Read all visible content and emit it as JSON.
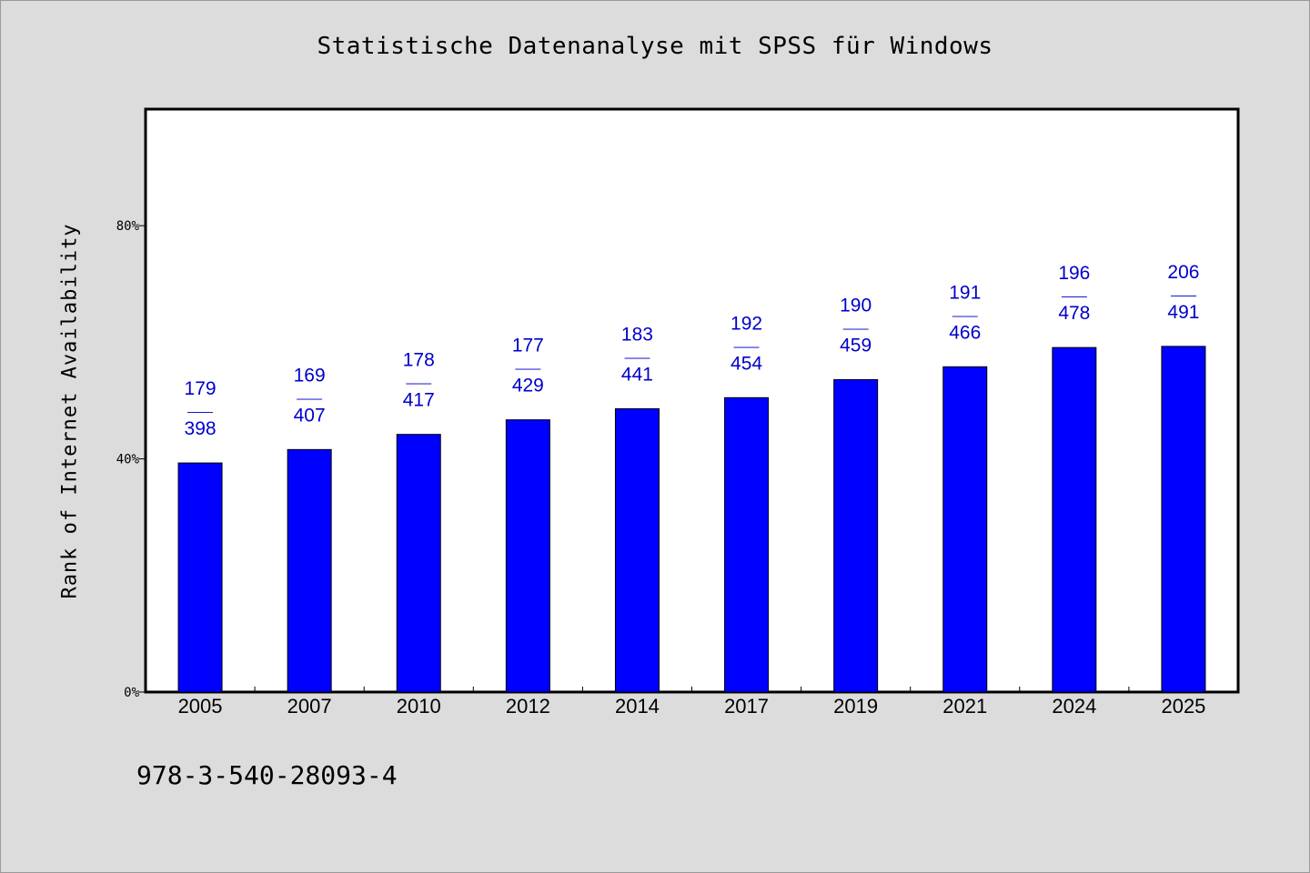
{
  "chart_data": {
    "type": "bar",
    "title": "Statistische Datenanalyse mit SPSS für Windows",
    "ylabel": "Rank of Internet Availability",
    "xlabel": "",
    "ylim": [
      0,
      100
    ],
    "yticks": [
      0,
      40,
      80
    ],
    "ytick_labels": [
      "0%",
      "40%",
      "80%"
    ],
    "categories": [
      "2005",
      "2007",
      "2010",
      "2012",
      "2014",
      "2017",
      "2019",
      "2021",
      "2024",
      "2025"
    ],
    "values": [
      39.3,
      41.6,
      44.2,
      46.7,
      48.6,
      50.5,
      53.6,
      55.8,
      59.1,
      59.3
    ],
    "bar_labels": [
      {
        "top": "179",
        "sep": "——",
        "bottom": "398"
      },
      {
        "top": "169",
        "sep": "——",
        "bottom": "407"
      },
      {
        "top": "178",
        "sep": "——",
        "bottom": "417"
      },
      {
        "top": "177",
        "sep": "——",
        "bottom": "429"
      },
      {
        "top": "183",
        "sep": "——",
        "bottom": "441"
      },
      {
        "top": "192",
        "sep": "——",
        "bottom": "454"
      },
      {
        "top": "190",
        "sep": "——",
        "bottom": "459"
      },
      {
        "top": "191",
        "sep": "——",
        "bottom": "466"
      },
      {
        "top": "196",
        "sep": "——",
        "bottom": "478"
      },
      {
        "top": "206",
        "sep": "——",
        "bottom": "491"
      }
    ],
    "bar_color": "#0000ff",
    "label_color": "#0000cc",
    "grid": false,
    "legend": "none"
  },
  "footer": {
    "isbn": "978-3-540-28093-4"
  }
}
